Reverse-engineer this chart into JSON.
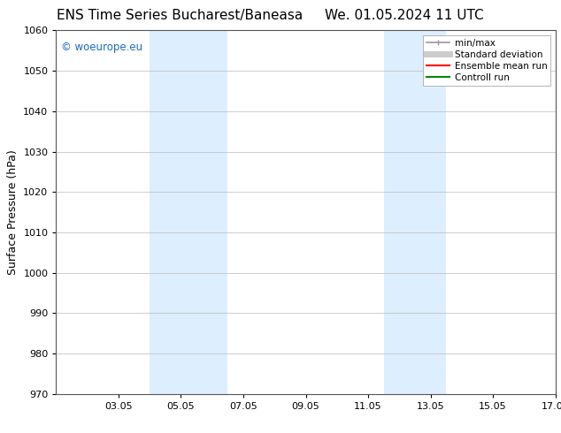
{
  "title_left": "ENS Time Series Bucharest/Baneasa",
  "title_right": "We. 01.05.2024 11 UTC",
  "ylabel": "Surface Pressure (hPa)",
  "ylim": [
    970,
    1060
  ],
  "yticks": [
    970,
    980,
    990,
    1000,
    1010,
    1020,
    1030,
    1040,
    1050,
    1060
  ],
  "xtick_labels": [
    "03.05",
    "05.05",
    "07.05",
    "09.05",
    "11.05",
    "13.05",
    "15.05",
    "17.05"
  ],
  "xtick_positions": [
    2,
    4,
    6,
    8,
    10,
    12,
    14,
    16
  ],
  "shaded_bands": [
    {
      "x_start": 3.0,
      "x_end": 5.5,
      "color": "#ddeeff"
    },
    {
      "x_start": 10.5,
      "x_end": 12.5,
      "color": "#ddeeff"
    }
  ],
  "watermark_text": "© woeurope.eu",
  "watermark_color": "#1a6cba",
  "background_color": "#ffffff",
  "plot_bg_color": "#ffffff",
  "grid_color": "#bbbbbb",
  "legend_entries": [
    {
      "label": "min/max",
      "color": "#999999",
      "lw": 1.2,
      "ls": "-"
    },
    {
      "label": "Standard deviation",
      "color": "#cccccc",
      "lw": 5,
      "ls": "-"
    },
    {
      "label": "Ensemble mean run",
      "color": "#ff0000",
      "lw": 1.5,
      "ls": "-"
    },
    {
      "label": "Controll run",
      "color": "#008800",
      "lw": 1.5,
      "ls": "-"
    }
  ],
  "title_fontsize": 11,
  "axis_label_fontsize": 9,
  "tick_fontsize": 8,
  "legend_fontsize": 7.5
}
